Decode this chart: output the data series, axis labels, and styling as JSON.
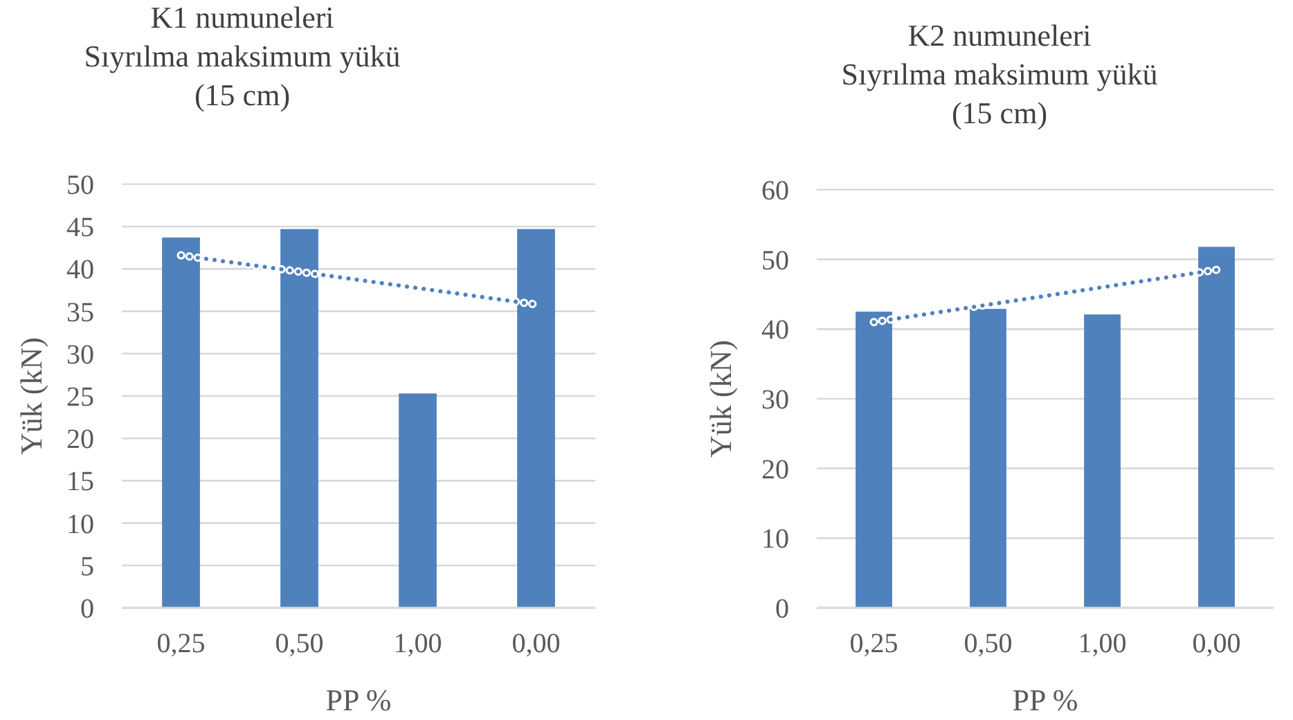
{
  "chart_data": [
    {
      "type": "bar",
      "title": "K1 numuneleri\nSıyrılma maksimum yükü\n(15 cm)",
      "xlabel": "PP %",
      "ylabel": "Yük (kN)",
      "categories": [
        "0,25",
        "0,50",
        "1,00",
        "0,00"
      ],
      "ylim": [
        0,
        50
      ],
      "yticks": [
        0,
        5,
        10,
        15,
        20,
        25,
        30,
        35,
        40,
        45,
        50
      ],
      "grid": "y",
      "legend": false,
      "series": [
        {
          "color": "#4f81bd",
          "values": [
            43.7,
            44.7,
            25.3,
            44.7
          ]
        },
        {
          "type": "line",
          "color": "#4f81bd",
          "line_style": "dotted",
          "x": [
            "0,25",
            "0,00"
          ],
          "values": [
            41.6,
            35.8
          ]
        }
      ]
    },
    {
      "type": "bar",
      "title": "K2 numuneleri\nSıyrılma maksimum yükü\n(15 cm)",
      "xlabel": "PP %",
      "ylabel": "Yük (kN)",
      "categories": [
        "0,25",
        "0,50",
        "1,00",
        "0,00"
      ],
      "ylim": [
        0,
        60
      ],
      "yticks": [
        0,
        10,
        20,
        30,
        40,
        50,
        60
      ],
      "grid": "y",
      "legend": false,
      "series": [
        {
          "color": "#4f81bd",
          "values": [
            42.5,
            42.9,
            42.1,
            51.8
          ]
        },
        {
          "type": "line",
          "color": "#4f81bd",
          "line_style": "dotted",
          "x": [
            "0,25",
            "0,00"
          ],
          "values": [
            41.0,
            48.5
          ]
        }
      ]
    }
  ]
}
